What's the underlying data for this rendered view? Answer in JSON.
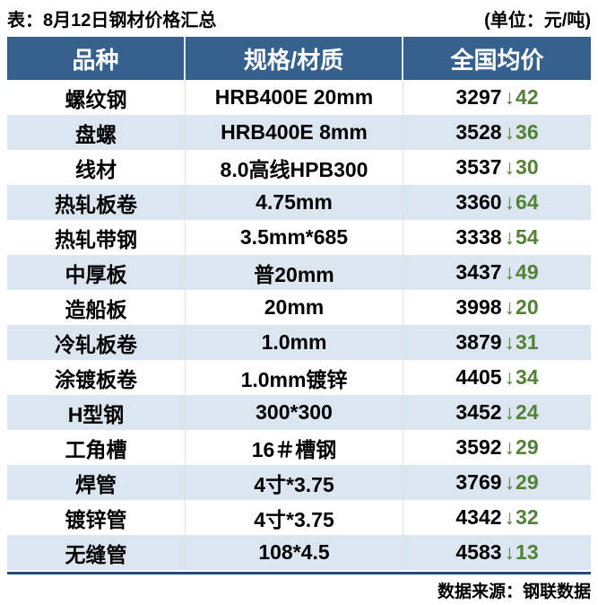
{
  "header": {
    "title": "表：8月12日钢材价格汇总",
    "unit_label": "(单位：元/吨)"
  },
  "footer": {
    "source_label": "数据来源：钢联数据"
  },
  "icons": {
    "down_arrow": "↓"
  },
  "colors": {
    "header_bg": "#36618E",
    "row_stripe": "#DCE6F1",
    "down_green": "#538135",
    "bottom_rule_navy": "#1F4E79",
    "header_text": "#FFFFFF",
    "body_text": "#000000"
  },
  "chart_data": {
    "type": "table",
    "title": "表：8月12日钢材价格汇总",
    "unit": "元/吨",
    "source": "钢联数据",
    "columns": [
      "品种",
      "规格/材质",
      "全国均价"
    ],
    "rows": [
      {
        "name": "螺纹钢",
        "spec": "HRB400E 20mm",
        "price": 3297,
        "change": -42
      },
      {
        "name": "盘螺",
        "spec": "HRB400E 8mm",
        "price": 3528,
        "change": -36
      },
      {
        "name": "线材",
        "spec": "8.0高线HPB300",
        "price": 3537,
        "change": -30
      },
      {
        "name": "热轧板卷",
        "spec": "4.75mm",
        "price": 3360,
        "change": -64
      },
      {
        "name": "热轧带钢",
        "spec": "3.5mm*685",
        "price": 3338,
        "change": -54
      },
      {
        "name": "中厚板",
        "spec": "普20mm",
        "price": 3437,
        "change": -49
      },
      {
        "name": "造船板",
        "spec": "20mm",
        "price": 3998,
        "change": -20
      },
      {
        "name": "冷轧板卷",
        "spec": "1.0mm",
        "price": 3879,
        "change": -31
      },
      {
        "name": "涂镀板卷",
        "spec": "1.0mm镀锌",
        "price": 4405,
        "change": -34
      },
      {
        "name": "H型钢",
        "spec": "300*300",
        "price": 3452,
        "change": -24
      },
      {
        "name": "工角槽",
        "spec": "16＃槽钢",
        "price": 3592,
        "change": -29
      },
      {
        "name": "焊管",
        "spec": "4寸*3.75",
        "price": 3769,
        "change": -29
      },
      {
        "name": "镀锌管",
        "spec": "4寸*3.75",
        "price": 4342,
        "change": -32
      },
      {
        "name": "无缝管",
        "spec": "108*4.5",
        "price": 4583,
        "change": -13
      }
    ]
  }
}
